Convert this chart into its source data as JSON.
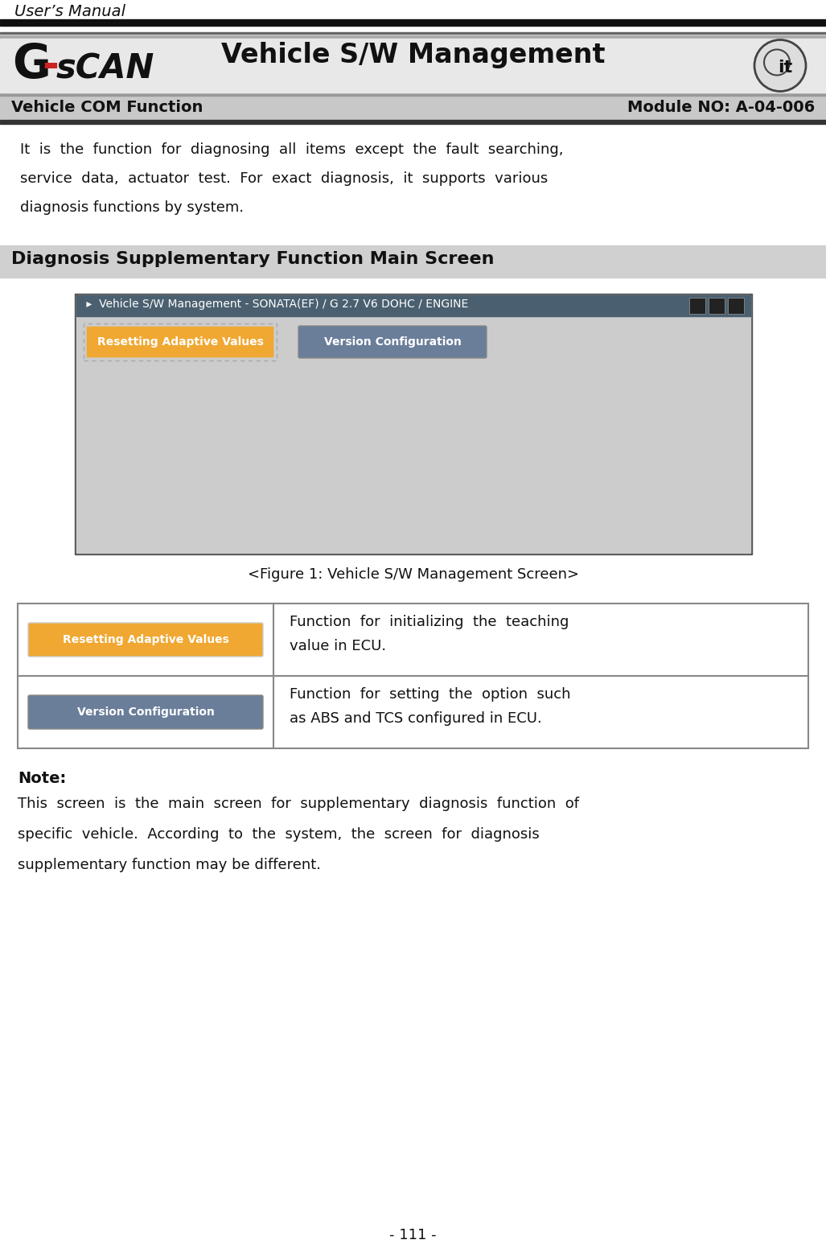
{
  "title": "User’s Manual",
  "page_num": "- 111 -",
  "header_title": "Vehicle S/W Management",
  "subheader_left": "Vehicle COM Function",
  "subheader_right": "Module NO: A-04-006",
  "intro_line1": "It  is  the  function  for  diagnosing  all  items  except  the  fault  searching,",
  "intro_line2": "service  data,  actuator  test.  For  exact  diagnosis,  it  supports  various",
  "intro_line3": "diagnosis functions by system.",
  "section_title": "Diagnosis Supplementary Function Main Screen",
  "screen_title": " ▸  Vehicle S/W Management - SONATA(EF) / G 2.7 V6 DOHC / ENGINE",
  "btn1_label": "Resetting Adaptive Values",
  "btn2_label": "Version Configuration",
  "figure_caption": "<Figure 1: Vehicle S/W Management Screen>",
  "table_row1_line1": "Function  for  initializing  the  teaching",
  "table_row1_line2": "value in ECU.",
  "table_row2_line1": "Function  for  setting  the  option  such",
  "table_row2_line2": "as ABS and TCS configured in ECU.",
  "note_label": "Note:",
  "note_line1": "This  screen  is  the  main  screen  for  supplementary  diagnosis  function  of",
  "note_line2": "specific  vehicle.  According  to  the  system,  the  screen  for  diagnosis",
  "note_line3": "supplementary function may be different.",
  "bg_color": "#ffffff",
  "header_top_bar_color": "#555555",
  "header_top_bar2_color": "#888888",
  "header_bg_top": "#aaaaaa",
  "header_bg_mid": "#e0e0e0",
  "subheader_bg": "#c8c8c8",
  "subheader_dark_line": "#333333",
  "section_bg": "#d0d0d0",
  "screen_border": "#555555",
  "screen_bg": "#cccccc",
  "screen_titlebar_bg": "#4a6070",
  "screen_titlebar_text": "#ffffff",
  "btn1_color": "#f0a832",
  "btn2_color": "#6a7e9a",
  "btn_text_color": "#ffffff",
  "table_border_color": "#888888",
  "text_color": "#111111"
}
